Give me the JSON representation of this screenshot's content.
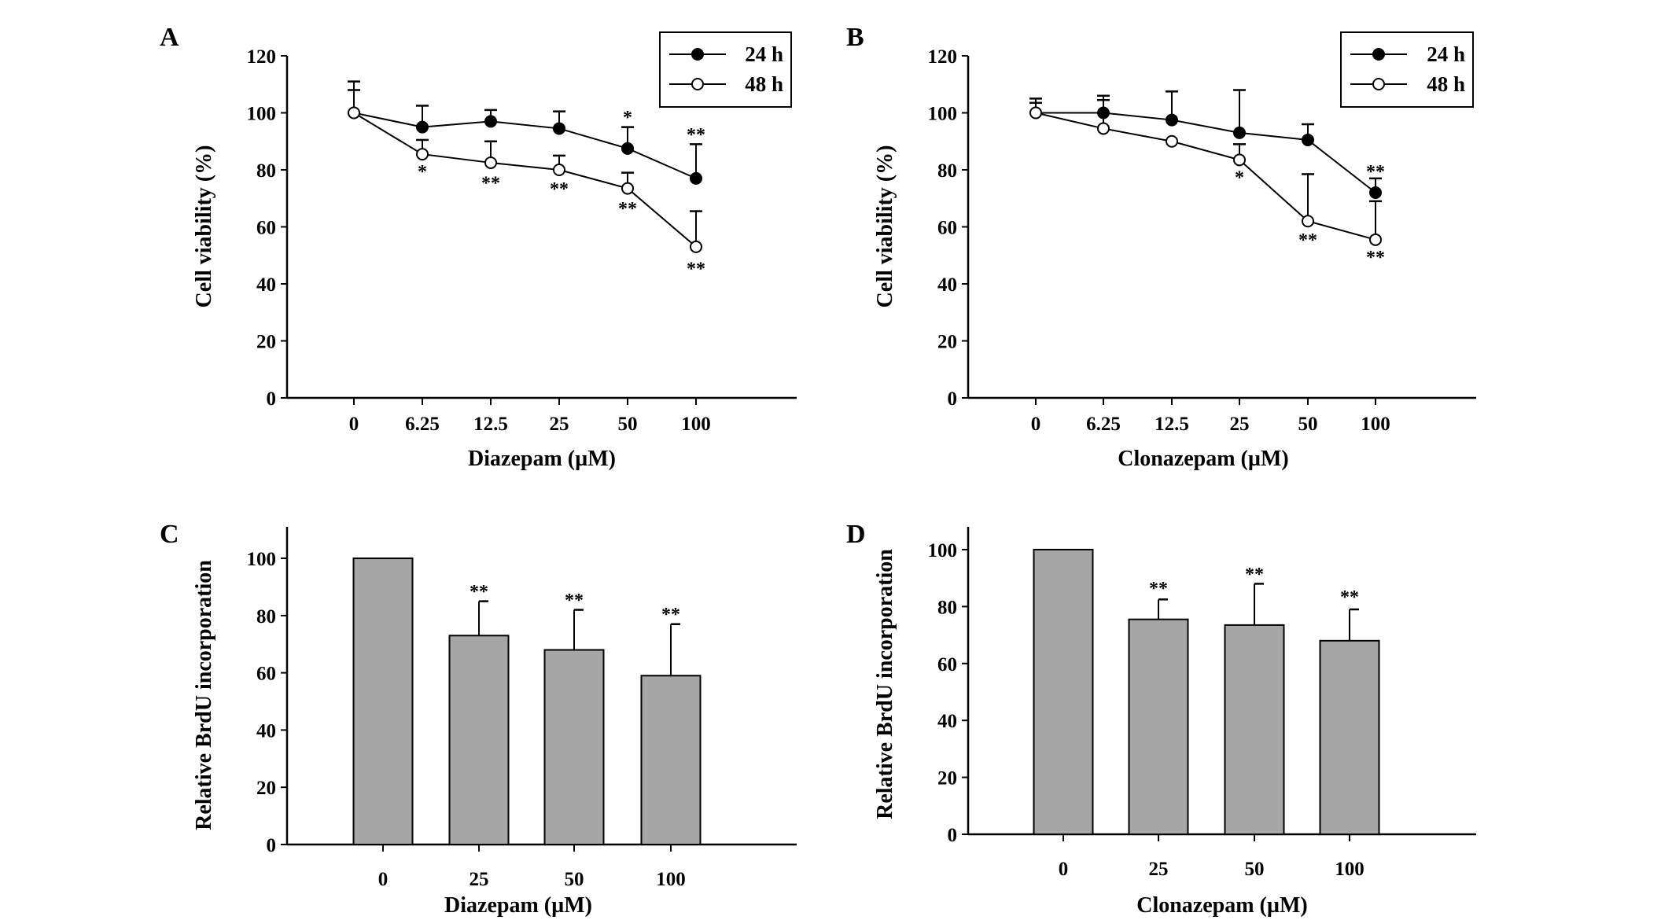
{
  "chart_data": [
    {
      "panel": "A",
      "type": "line",
      "xlabel": "Diazepam (µM)",
      "ylabel": "Cell viability (%)",
      "categories": [
        "0",
        "6.25",
        "12.5",
        "25",
        "50",
        "100"
      ],
      "ylim": [
        0,
        120
      ],
      "yticks": [
        "0",
        "20",
        "40",
        "60",
        "80",
        "100",
        "120"
      ],
      "grid": false,
      "legend_position": "top-right",
      "series": [
        {
          "name": "24 h",
          "marker": "filled-circle",
          "values": [
            100,
            95,
            97,
            94.5,
            87.5,
            77
          ],
          "error_upper": [
            108,
            102.5,
            101,
            100.5,
            95,
            89
          ]
        },
        {
          "name": "48 h",
          "marker": "open-circle",
          "values": [
            100,
            85.5,
            82.5,
            80,
            73.5,
            53
          ],
          "error_upper": [
            111,
            90.5,
            90,
            85,
            79,
            65.5
          ]
        }
      ],
      "annotations": [
        {
          "category": "50",
          "text": "*",
          "y": 99
        },
        {
          "category": "100",
          "text": "**",
          "y": 93
        },
        {
          "category": "6.25",
          "text": "*",
          "y": 80
        },
        {
          "category": "12.5",
          "text": "**",
          "y": 76
        },
        {
          "category": "25",
          "text": "**",
          "y": 74
        },
        {
          "category": "50",
          "text": "**",
          "y": 67
        },
        {
          "category": "100",
          "text": "**",
          "y": 46
        }
      ]
    },
    {
      "panel": "B",
      "type": "line",
      "xlabel": "Clonazepam (µM)",
      "ylabel": "Cell viability (%)",
      "categories": [
        "0",
        "6.25",
        "12.5",
        "25",
        "50",
        "100"
      ],
      "ylim": [
        0,
        120
      ],
      "yticks": [
        "0",
        "20",
        "40",
        "60",
        "80",
        "100",
        "120"
      ],
      "grid": false,
      "legend_position": "top-right",
      "series": [
        {
          "name": "24 h",
          "marker": "filled-circle",
          "values": [
            100,
            100,
            97.5,
            93,
            90.5,
            72
          ],
          "error_upper": [
            103.5,
            106,
            107.5,
            108,
            96,
            77
          ]
        },
        {
          "name": "48 h",
          "marker": "open-circle",
          "values": [
            100,
            94.5,
            90,
            83.5,
            62,
            55.5
          ],
          "error_upper": [
            105,
            104.5,
            null,
            89,
            78.5,
            69
          ]
        }
      ],
      "annotations": [
        {
          "category": "25",
          "text": "*",
          "y": 78
        },
        {
          "category": "50",
          "text": "**",
          "y": 56
        },
        {
          "category": "100",
          "text": "**",
          "y": 50
        },
        {
          "category": "100",
          "text": "**",
          "y": 80
        }
      ]
    },
    {
      "panel": "C",
      "type": "bar",
      "xlabel": "Diazepam (µM)",
      "ylabel": "Relative BrdU incorporation",
      "categories": [
        "0",
        "25",
        "50",
        "100"
      ],
      "values": [
        100,
        73,
        68,
        59
      ],
      "error_upper": [
        null,
        85,
        82,
        77
      ],
      "ylim": [
        0,
        111
      ],
      "yticks": [
        "0",
        "20",
        "40",
        "60",
        "80",
        "100"
      ],
      "grid": false,
      "bar_color": "#a6a6a6",
      "annotations": [
        {
          "category": "25",
          "text": "**",
          "y": 89
        },
        {
          "category": "50",
          "text": "**",
          "y": 86
        },
        {
          "category": "100",
          "text": "**",
          "y": 81
        }
      ]
    },
    {
      "panel": "D",
      "type": "bar",
      "xlabel": "Clonazepam (µM)",
      "ylabel": "Relative BrdU incorporation",
      "categories": [
        "0",
        "25",
        "50",
        "100"
      ],
      "values": [
        100,
        75.5,
        73.5,
        68
      ],
      "error_upper": [
        null,
        82.5,
        88,
        79
      ],
      "ylim": [
        0,
        108
      ],
      "yticks": [
        "0",
        "20",
        "40",
        "60",
        "80",
        "100"
      ],
      "grid": false,
      "bar_color": "#a6a6a6",
      "annotations": [
        {
          "category": "25",
          "text": "**",
          "y": 87
        },
        {
          "category": "50",
          "text": "**",
          "y": 92
        },
        {
          "category": "100",
          "text": "**",
          "y": 84
        }
      ]
    }
  ]
}
